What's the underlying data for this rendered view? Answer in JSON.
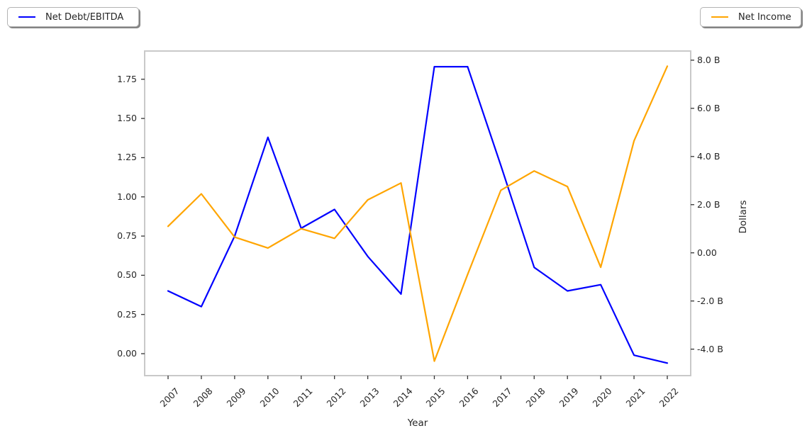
{
  "legend_left": {
    "label": "Net Debt/EBITDA"
  },
  "legend_right": {
    "label": "Net Income"
  },
  "chart_data": {
    "type": "line",
    "title": "",
    "xlabel": "Year",
    "categories": [
      "2007",
      "2008",
      "2009",
      "2010",
      "2011",
      "2012",
      "2013",
      "2014",
      "2015",
      "2016",
      "2017",
      "2018",
      "2019",
      "2020",
      "2021",
      "2022"
    ],
    "grid": false,
    "legend_position": "outside top-left (Net Debt/EBITDA) and outside top-right (Net Income)",
    "series": [
      {
        "name": "Net Debt/EBITDA",
        "axis": "left",
        "color": "#0000ff",
        "values": [
          0.4,
          0.3,
          0.75,
          1.38,
          0.8,
          0.92,
          0.62,
          0.38,
          1.83,
          1.83,
          1.2,
          0.55,
          0.4,
          0.44,
          -0.01,
          -0.06
        ]
      },
      {
        "name": "Net Income",
        "axis": "right",
        "color": "#ffa500",
        "unit": "billions of dollars",
        "values": [
          1.1,
          2.45,
          0.65,
          0.2,
          1.0,
          0.6,
          2.2,
          2.9,
          -4.5,
          -0.9,
          2.6,
          3.4,
          2.75,
          -0.6,
          4.65,
          7.75
        ]
      }
    ],
    "axes": {
      "left": {
        "label": "",
        "lim": [
          -0.14,
          1.93
        ],
        "tick_values": [
          1.75,
          1.5,
          1.25,
          1.0,
          0.75,
          0.5,
          0.25,
          0.0
        ],
        "tick_labels": [
          "1.75",
          "1.50",
          "1.25",
          "1.00",
          "0.75",
          "0.50",
          "0.25",
          "0.00"
        ]
      },
      "right": {
        "label": "Dollars",
        "lim": [
          -5.1,
          8.38
        ],
        "tick_values": [
          8.0,
          6.0,
          4.0,
          2.0,
          0.0,
          -2.0,
          -4.0
        ],
        "tick_labels": [
          "8.0 B",
          "6.0 B",
          "4.0 B",
          "2.0 B",
          "0.00",
          "-2.0 B",
          "-4.0 B"
        ]
      }
    }
  }
}
